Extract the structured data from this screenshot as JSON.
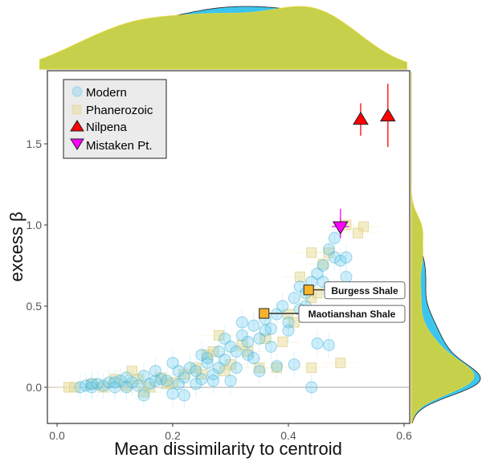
{
  "chart_data": {
    "type": "scatter",
    "xlabel": "Mean dissimilarity to centroid",
    "ylabel": "excess β",
    "xlim": [
      -0.03,
      0.61
    ],
    "ylim": [
      -0.22,
      1.95
    ],
    "xticks": [
      "0.0",
      "0.2",
      "0.4",
      "0.6"
    ],
    "xtick_values": [
      0,
      0.2,
      0.4,
      0.6
    ],
    "yticks": [
      "0.0",
      "0.5",
      "1.0",
      "1.5"
    ],
    "ytick_values": [
      0,
      0.5,
      1.0,
      1.5
    ],
    "reference_line_y": 0,
    "grid": false,
    "legend_placement": "top-left",
    "marginal_densities": true,
    "colors": {
      "modern": "#5bc8ef",
      "phanerozoic": "#e8dc9a",
      "nilpena": "#ff0000",
      "mistaken": "#ff00ff",
      "highlight": "#f7b52c",
      "density_modern": "#3cc6ee",
      "density_phanerozoic": "#c7d04a"
    },
    "legend": [
      "Modern",
      "Phanerozoic",
      "Nilpena",
      "Mistaken Pt."
    ],
    "series": [
      {
        "name": "Modern",
        "marker": "circle",
        "points": [
          [
            0.04,
            0
          ],
          [
            0.05,
            0.01
          ],
          [
            0.06,
            0
          ],
          [
            0.07,
            0.02
          ],
          [
            0.08,
            0.01
          ],
          [
            0.09,
            0.03
          ],
          [
            0.1,
            0
          ],
          [
            0.11,
            0.04
          ],
          [
            0.12,
            0.06
          ],
          [
            0.13,
            0.03
          ],
          [
            0.14,
            0.01
          ],
          [
            0.15,
            0.07
          ],
          [
            0.16,
            0.02
          ],
          [
            0.17,
            0.1
          ],
          [
            0.18,
            0.05
          ],
          [
            0.19,
            0.04
          ],
          [
            0.2,
            -0.04
          ],
          [
            0.21,
            0.1
          ],
          [
            0.22,
            0.06
          ],
          [
            0.23,
            0.12
          ],
          [
            0.24,
            0.02
          ],
          [
            0.25,
            0.2
          ],
          [
            0.26,
            0.15
          ],
          [
            0.27,
            0.08
          ],
          [
            0.28,
            0.22
          ],
          [
            0.29,
            0.3
          ],
          [
            0.3,
            0.25
          ],
          [
            0.31,
            0.12
          ],
          [
            0.32,
            0.32
          ],
          [
            0.33,
            0.2
          ],
          [
            0.34,
            0.38
          ],
          [
            0.35,
            0.3
          ],
          [
            0.36,
            0.42
          ],
          [
            0.37,
            0.36
          ],
          [
            0.38,
            0.45
          ],
          [
            0.39,
            0.5
          ],
          [
            0.4,
            0.4
          ],
          [
            0.41,
            0.55
          ],
          [
            0.42,
            0.62
          ],
          [
            0.43,
            0.58
          ],
          [
            0.44,
            0.65
          ],
          [
            0.45,
            0.7
          ],
          [
            0.46,
            0.75
          ],
          [
            0.47,
            0.85
          ],
          [
            0.48,
            0.8
          ],
          [
            0.49,
            0.78
          ],
          [
            0.5,
            0.8
          ],
          [
            0.5,
            0.68
          ],
          [
            0.48,
            0.92
          ],
          [
            0.45,
            0.27
          ],
          [
            0.47,
            0.26
          ],
          [
            0.41,
            0.14
          ],
          [
            0.38,
            0.13
          ],
          [
            0.44,
            0.0
          ],
          [
            0.3,
            0.04
          ],
          [
            0.27,
            0.04
          ],
          [
            0.15,
            -0.05
          ],
          [
            0.22,
            -0.05
          ],
          [
            0.26,
            0.18
          ],
          [
            0.33,
            0.28
          ],
          [
            0.36,
            0.35
          ],
          [
            0.4,
            0.35
          ],
          [
            0.43,
            0.5
          ],
          [
            0.35,
            0.1
          ],
          [
            0.2,
            0.15
          ],
          [
            0.17,
            0.04
          ],
          [
            0.28,
            0.12
          ],
          [
            0.31,
            0.22
          ],
          [
            0.24,
            0.1
          ],
          [
            0.32,
            0.4
          ],
          [
            0.29,
            0.17
          ],
          [
            0.12,
            0.0
          ],
          [
            0.06,
            0.02
          ],
          [
            0.1,
            0.03
          ],
          [
            0.46,
            0.65
          ],
          [
            0.42,
            0.48
          ],
          [
            0.37,
            0.25
          ],
          [
            0.34,
            0.18
          ],
          [
            0.25,
            0.05
          ],
          [
            0.21,
            0.02
          ]
        ]
      },
      {
        "name": "Phanerozoic",
        "marker": "square",
        "points": [
          [
            0.02,
            0
          ],
          [
            0.03,
            0
          ],
          [
            0.06,
            0.02
          ],
          [
            0.08,
            0
          ],
          [
            0.1,
            0.05
          ],
          [
            0.12,
            0.01
          ],
          [
            0.13,
            0.1
          ],
          [
            0.15,
            -0.03
          ],
          [
            0.16,
            0
          ],
          [
            0.18,
            0.06
          ],
          [
            0.2,
            0.03
          ],
          [
            0.22,
            0.08
          ],
          [
            0.24,
            0.12
          ],
          [
            0.26,
            0.2
          ],
          [
            0.27,
            0.22
          ],
          [
            0.28,
            0.32
          ],
          [
            0.3,
            0.14
          ],
          [
            0.32,
            0.26
          ],
          [
            0.33,
            0.22
          ],
          [
            0.35,
            0.12
          ],
          [
            0.38,
            0.12
          ],
          [
            0.39,
            0.28
          ],
          [
            0.4,
            0.45
          ],
          [
            0.41,
            0.4
          ],
          [
            0.42,
            0.68
          ],
          [
            0.44,
            0.55
          ],
          [
            0.45,
            0.58
          ],
          [
            0.44,
            0.83
          ],
          [
            0.47,
            0.83
          ],
          [
            0.5,
            1.0
          ],
          [
            0.53,
            0.99
          ],
          [
            0.52,
            0.95
          ],
          [
            0.44,
            0.12
          ],
          [
            0.49,
            0.15
          ],
          [
            0.36,
            0.3
          ],
          [
            0.29,
            0.1
          ],
          [
            0.25,
            0.08
          ],
          [
            0.14,
            0.05
          ],
          [
            0.19,
            0.02
          ],
          [
            0.46,
            0.76
          ]
        ]
      },
      {
        "name": "Nilpena",
        "marker": "triangle-up",
        "points": [
          [
            0.525,
            1.65,
            1.55,
            1.75
          ],
          [
            0.572,
            1.67,
            1.48,
            1.87
          ]
        ]
      },
      {
        "name": "Mistaken Pt.",
        "marker": "triangle-down",
        "points": [
          [
            0.49,
            0.99,
            0.92,
            1.1
          ]
        ]
      }
    ],
    "annotations": [
      {
        "label": "Burgess Shale",
        "x": 0.435,
        "y": 0.6
      },
      {
        "label": "Maotianshan Shale",
        "x": 0.358,
        "y": 0.455
      }
    ]
  }
}
